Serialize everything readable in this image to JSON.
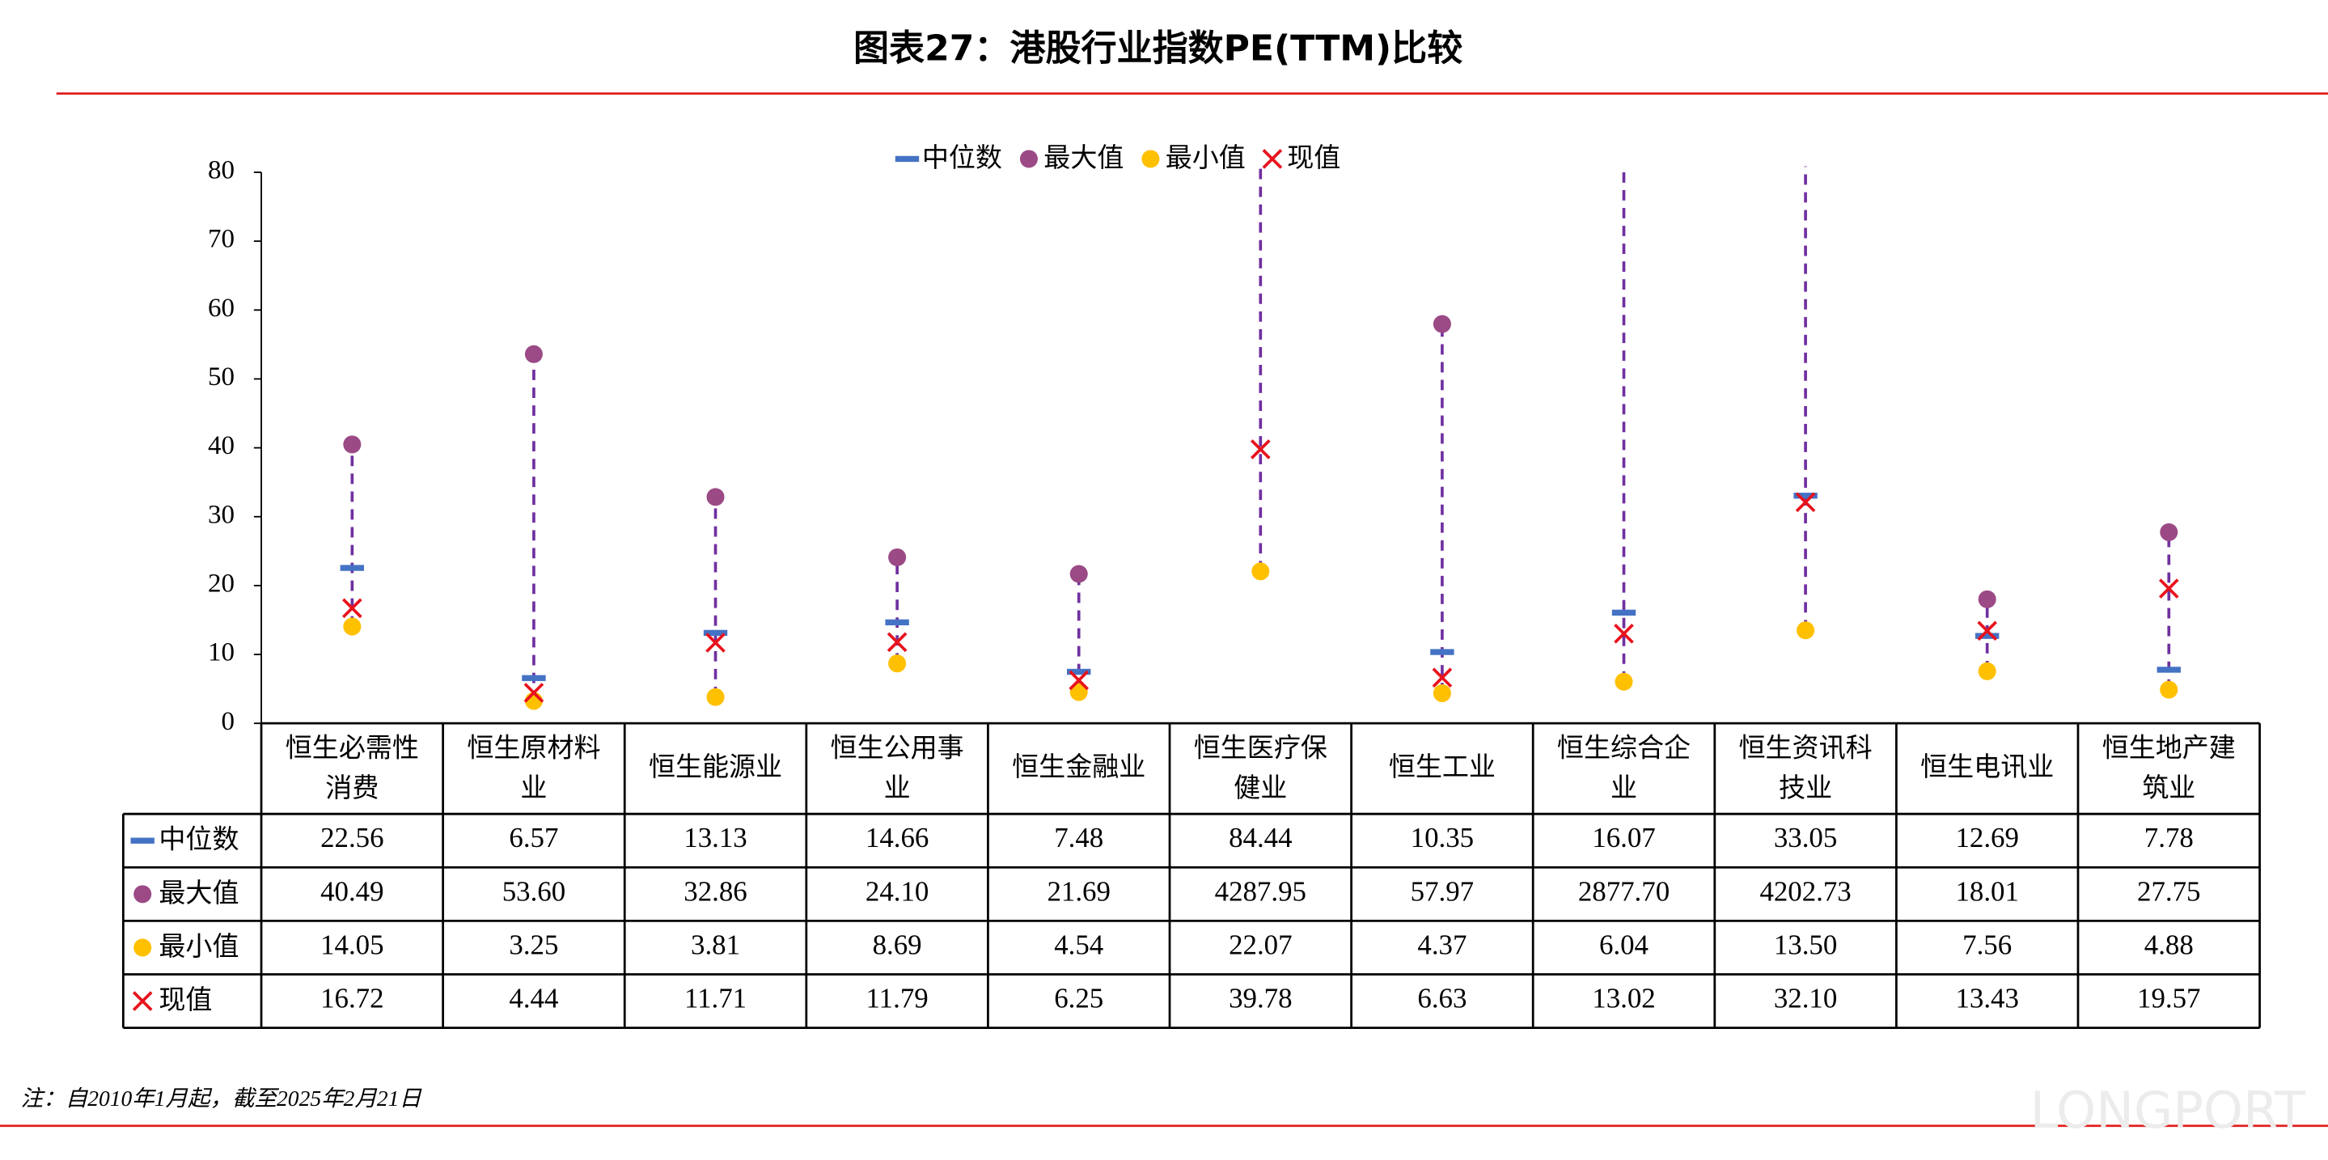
{
  "chart_data": {
    "type": "range-dot",
    "title": "图表27：港股行业指数PE(TTM)比较",
    "categories": [
      "恒生必需性消费",
      "恒生原材料业",
      "恒生能源业",
      "恒生公用事业",
      "恒生金融业",
      "恒生医疗保健业",
      "恒生工业",
      "恒生综合企业",
      "恒生资讯科技业",
      "恒生电讯业",
      "恒生地产建筑业"
    ],
    "series": [
      {
        "name": "中位数",
        "color": "#4472c4",
        "values": [
          22.56,
          6.57,
          13.13,
          14.66,
          7.48,
          84.44,
          10.35,
          16.07,
          33.05,
          12.69,
          7.78
        ],
        "value_labels": [
          "22.56",
          "6.57",
          "13.13",
          "14.66",
          "7.48",
          "84.44",
          "10.35",
          "16.07",
          "33.05",
          "12.69",
          "7.78"
        ]
      },
      {
        "name": "最大值",
        "color": "#9b4a86",
        "values": [
          40.49,
          53.6,
          32.86,
          24.1,
          21.69,
          4287.95,
          57.97,
          2877.7,
          4202.73,
          18.01,
          27.75
        ],
        "value_labels": [
          "40.49",
          "53.60",
          "32.86",
          "24.10",
          "21.69",
          "4287.95",
          "57.97",
          "2877.70",
          "4202.73",
          "18.01",
          "27.75"
        ]
      },
      {
        "name": "最小值",
        "color": "#ffc000",
        "values": [
          14.05,
          3.25,
          3.81,
          8.69,
          4.54,
          22.07,
          4.37,
          6.04,
          13.5,
          7.56,
          4.88
        ],
        "value_labels": [
          "14.05",
          "3.25",
          "3.81",
          "8.69",
          "4.54",
          "22.07",
          "4.37",
          "6.04",
          "13.50",
          "7.56",
          "4.88"
        ]
      },
      {
        "name": "现值",
        "color": "#e8121c",
        "values": [
          16.72,
          4.44,
          11.71,
          11.79,
          6.25,
          39.78,
          6.63,
          13.02,
          32.1,
          13.43,
          19.57
        ],
        "value_labels": [
          "16.72",
          "4.44",
          "11.71",
          "11.79",
          "6.25",
          "39.78",
          "6.63",
          "13.02",
          "32.10",
          "13.43",
          "19.57"
        ]
      }
    ],
    "range_color": "#7030a0",
    "ylim": [
      0,
      80
    ],
    "yticks": [
      0,
      10,
      20,
      30,
      40,
      50,
      60,
      70,
      80
    ],
    "note": "注：自2010年1月起，截至2025年2月21日",
    "watermark": "LONGPORT"
  }
}
